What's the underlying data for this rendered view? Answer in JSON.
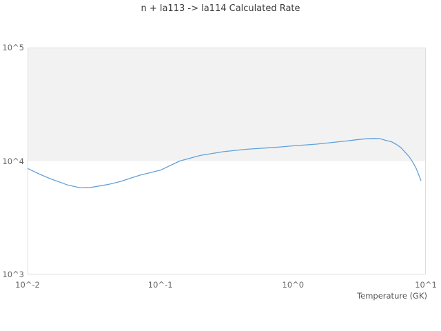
{
  "colors": {
    "line": "#60a1db",
    "band_fill": "#f2f2f2",
    "frame_stroke": "#dddddd",
    "title_text": "#3b3b3b",
    "tick_text": "#666666"
  },
  "chart_data": {
    "type": "line",
    "title": "n + la113 -> la114 Calculated Rate",
    "xlabel": "Temperature (GK)",
    "ylabel": "",
    "x_scale": "log",
    "y_scale": "log",
    "xlim": [
      0.01,
      10
    ],
    "ylim": [
      1000,
      100000
    ],
    "grid": false,
    "legend": "none",
    "x_ticks": [
      {
        "value": 0.01,
        "label": "10^-2"
      },
      {
        "value": 0.1,
        "label": "10^-1"
      },
      {
        "value": 1,
        "label": "10^0"
      },
      {
        "value": 10,
        "label": "10^1"
      }
    ],
    "y_ticks": [
      {
        "value": 100000,
        "label": "10^5"
      },
      {
        "value": 10000,
        "label": "10^4"
      },
      {
        "value": 1000,
        "label": "10^3"
      }
    ],
    "shaded_band": {
      "y_from": 10000,
      "y_to": 100000
    },
    "series": [
      {
        "name": "Calculated Rate",
        "x": [
          0.01,
          0.0125,
          0.015,
          0.02,
          0.025,
          0.03,
          0.04,
          0.05,
          0.07,
          0.1,
          0.14,
          0.2,
          0.3,
          0.45,
          0.6,
          0.8,
          1.0,
          1.5,
          2.0,
          2.5,
          3.0,
          3.5,
          4.0,
          4.5,
          5.0,
          5.5,
          6.0,
          6.5,
          7.0,
          7.5,
          8.0,
          8.5,
          9.2
        ],
        "y": [
          8600,
          7600,
          6950,
          6150,
          5800,
          5850,
          6200,
          6600,
          7500,
          8300,
          10000,
          11200,
          12100,
          12700,
          13000,
          13300,
          13600,
          14100,
          14600,
          15000,
          15400,
          15700,
          15800,
          15750,
          15200,
          14800,
          14000,
          13100,
          11900,
          10900,
          9700,
          8500,
          6700
        ]
      }
    ]
  }
}
